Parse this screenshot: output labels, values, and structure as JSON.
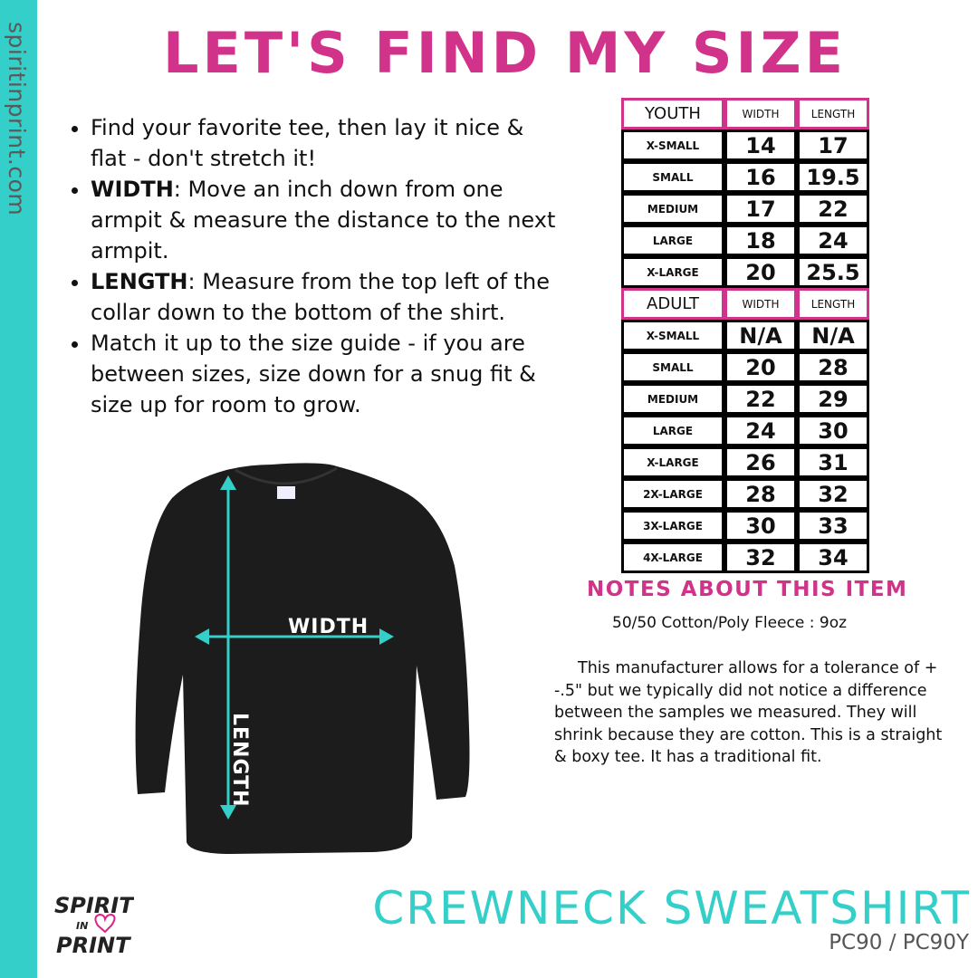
{
  "sidebar": {
    "url": "spiritinprint.com",
    "color": "#33cfc8"
  },
  "title": "LET'S FIND MY SIZE",
  "instructions": [
    {
      "bold": "",
      "text": "Find your favorite tee, then lay it nice & flat - don't stretch it!"
    },
    {
      "bold": "WIDTH",
      "text": ": Move an inch down from one armpit & measure the distance to the next armpit."
    },
    {
      "bold": "LENGTH",
      "text": ": Measure from the top left of the collar down to the bottom of the shirt."
    },
    {
      "bold": "",
      "text": "Match it up to the size guide - if you are between sizes, size down for a snug fit & size up for room to grow."
    }
  ],
  "diagram": {
    "width_label": "WIDTH",
    "length_label": "LENGTH",
    "arrow_color": "#33cfc8"
  },
  "size_chart": {
    "accent": "#d1338a",
    "youth": {
      "header": [
        "YOUTH",
        "WIDTH",
        "LENGTH"
      ],
      "rows": [
        [
          "X-SMALL",
          "14",
          "17"
        ],
        [
          "SMALL",
          "16",
          "19.5"
        ],
        [
          "MEDIUM",
          "17",
          "22"
        ],
        [
          "LARGE",
          "18",
          "24"
        ],
        [
          "X-LARGE",
          "20",
          "25.5"
        ]
      ]
    },
    "adult": {
      "header": [
        "ADULT",
        "WIDTH",
        "LENGTH"
      ],
      "rows": [
        [
          "X-SMALL",
          "N/A",
          "N/A"
        ],
        [
          "SMALL",
          "20",
          "28"
        ],
        [
          "MEDIUM",
          "22",
          "29"
        ],
        [
          "LARGE",
          "24",
          "30"
        ],
        [
          "X-LARGE",
          "26",
          "31"
        ],
        [
          "2X-LARGE",
          "28",
          "32"
        ],
        [
          "3X-LARGE",
          "30",
          "33"
        ],
        [
          "4X-LARGE",
          "32",
          "34"
        ]
      ]
    }
  },
  "notes": {
    "heading": "NOTES ABOUT THIS ITEM",
    "fabric": "50/50 Cotton/Poly Fleece : 9oz",
    "body": "This manufacturer allows for a tolerance of + -.5\" but we typically did not notice a difference between the samples we measured. They will shrink because they are cotton. This is a straight & boxy tee. It has a traditional fit."
  },
  "product": {
    "name": "CREWNECK SWEATSHIRT",
    "sku": "PC90 / PC90Y"
  },
  "logo": {
    "text": "SPIRIT IN PRINT"
  }
}
